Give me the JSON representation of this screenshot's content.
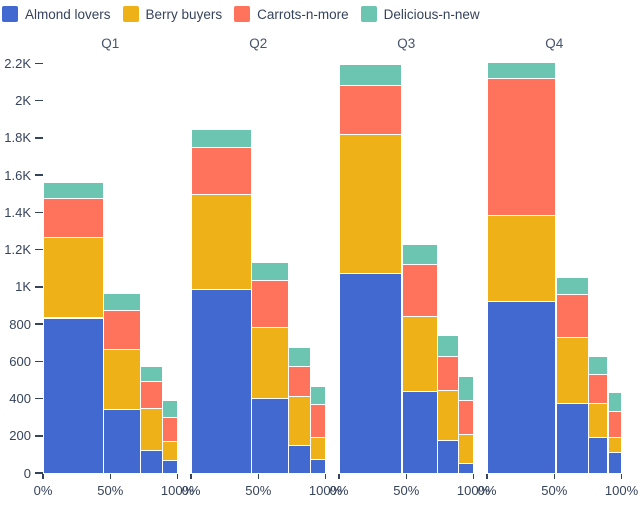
{
  "legend": {
    "items": [
      {
        "label": "Almond lovers",
        "color": "#4269d0"
      },
      {
        "label": "Berry buyers",
        "color": "#efb118"
      },
      {
        "label": "Carrots-n-more",
        "color": "#ff725c"
      },
      {
        "label": "Delicious-n-new",
        "color": "#6cc5b0"
      }
    ]
  },
  "chart_data": {
    "type": "bar",
    "variant": "marimekko-small-multiples",
    "title": "",
    "series_names": [
      "Almond lovers",
      "Berry buyers",
      "Carrots-n-more",
      "Delicious-n-new"
    ],
    "series_colors": [
      "#4269d0",
      "#efb118",
      "#ff725c",
      "#6cc5b0"
    ],
    "panel_titles": [
      "Q1",
      "Q2",
      "Q3",
      "Q4"
    ],
    "x_tick_labels": [
      "0%",
      "50%",
      "100%"
    ],
    "x_tick_positions": [
      0,
      0.5,
      1
    ],
    "y_tick_values": [
      0,
      200,
      400,
      600,
      800,
      1000,
      1200,
      1400,
      1600,
      1800,
      2000,
      2200
    ],
    "y_tick_labels": [
      "0",
      "200",
      "400",
      "600",
      "800",
      "1K",
      "1.2K",
      "1.4K",
      "1.6K",
      "1.8K",
      "2K",
      "2.2K"
    ],
    "ylim": [
      0,
      2200
    ],
    "grid": false,
    "legend_position": "top-left",
    "bar_width_rule": "bar width = bar total / quarter total (mekko)",
    "quarters": [
      {
        "label": "Q1",
        "bars": [
          {
            "values": [
              830,
              430,
              210,
              90
            ]
          },
          {
            "values": [
              340,
              320,
              210,
              90
            ]
          },
          {
            "values": [
              120,
              225,
              145,
              80
            ]
          },
          {
            "values": [
              65,
              100,
              130,
              90
            ]
          }
        ]
      },
      {
        "label": "Q2",
        "bars": [
          {
            "values": [
              985,
              510,
              250,
              100
            ]
          },
          {
            "values": [
              400,
              380,
              250,
              100
            ]
          },
          {
            "values": [
              145,
              265,
              160,
              100
            ]
          },
          {
            "values": [
              70,
              120,
              175,
              95
            ]
          }
        ]
      },
      {
        "label": "Q3",
        "bars": [
          {
            "values": [
              1070,
              745,
              265,
              110
            ]
          },
          {
            "values": [
              435,
              405,
              280,
              105
            ]
          },
          {
            "values": [
              170,
              270,
              185,
              110
            ]
          },
          {
            "values": [
              50,
              155,
              180,
              130
            ]
          }
        ]
      },
      {
        "label": "Q4",
        "bars": [
          {
            "values": [
              920,
              460,
              735,
              90
            ]
          },
          {
            "values": [
              370,
              355,
              230,
              90
            ]
          },
          {
            "values": [
              190,
              180,
              155,
              100
            ]
          },
          {
            "values": [
              110,
              80,
              140,
              100
            ]
          }
        ]
      }
    ]
  },
  "colors": {
    "text": "#36435c",
    "background": "#ffffff"
  }
}
